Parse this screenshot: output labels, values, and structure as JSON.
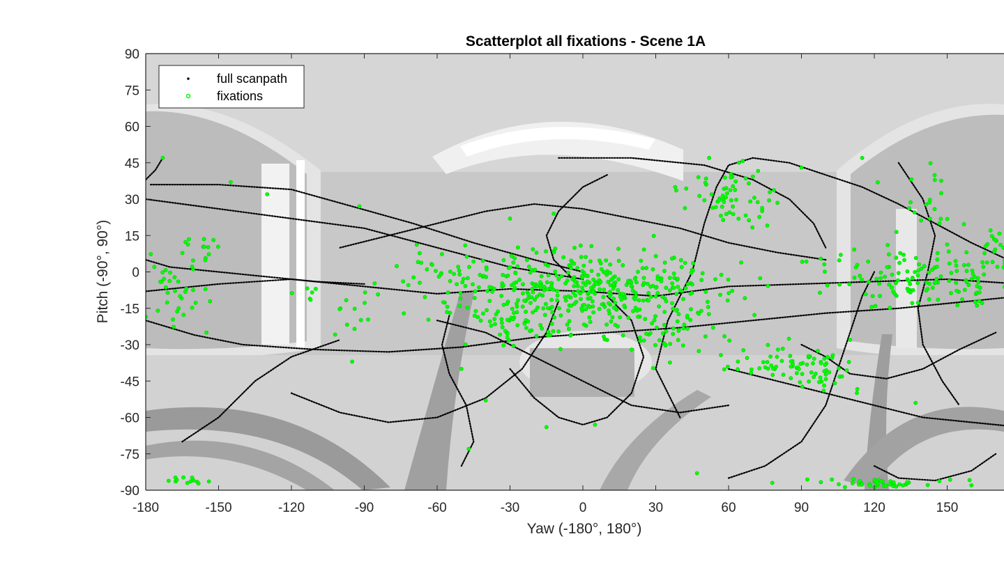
{
  "chart_data": {
    "type": "scatter",
    "title": "Scatterplot all fixations - Scene 1A",
    "xlabel": "Yaw (-180°, 180°)",
    "ylabel": "Pitch (-90°, 90°)",
    "xlim": [
      -180,
      180
    ],
    "ylim": [
      -90,
      90
    ],
    "xticks": [
      -180,
      -150,
      -120,
      -90,
      -60,
      -30,
      0,
      30,
      60,
      90,
      120,
      150
    ],
    "yticks": [
      90,
      75,
      60,
      45,
      30,
      15,
      0,
      -15,
      -30,
      -45,
      -60,
      -75,
      -90
    ],
    "background": "grayscale equirectangular 360° panorama of an interior scene",
    "grid": false,
    "legend_position": "top-left",
    "legend": [
      "full scanpath",
      "fixations"
    ],
    "series": [
      {
        "name": "full scanpath",
        "color": "#000000",
        "marker": "small dots",
        "paths": [
          [
            [
              -180,
              -8
            ],
            [
              -150,
              -5
            ],
            [
              -120,
              -3
            ],
            [
              -90,
              -6
            ],
            [
              -60,
              -9
            ],
            [
              -30,
              -7
            ],
            [
              0,
              -8
            ],
            [
              30,
              -10
            ],
            [
              60,
              -6
            ],
            [
              90,
              -5
            ],
            [
              120,
              -4
            ],
            [
              150,
              -3
            ],
            [
              180,
              -5
            ]
          ],
          [
            [
              -180,
              30
            ],
            [
              -150,
              26
            ],
            [
              -120,
              22
            ],
            [
              -90,
              18
            ],
            [
              -60,
              10
            ],
            [
              -30,
              2
            ],
            [
              0,
              -3
            ]
          ],
          [
            [
              -173,
              47
            ],
            [
              -176,
              42
            ],
            [
              -180,
              38
            ]
          ],
          [
            [
              -178,
              36
            ],
            [
              -150,
              36
            ],
            [
              -120,
              34
            ],
            [
              -95,
              27
            ],
            [
              -70,
              20
            ],
            [
              -45,
              12
            ],
            [
              -20,
              5
            ],
            [
              0,
              0
            ]
          ],
          [
            [
              -180,
              -20
            ],
            [
              -160,
              -26
            ],
            [
              -140,
              -30
            ],
            [
              -110,
              -32
            ],
            [
              -80,
              -33
            ],
            [
              -50,
              -31
            ],
            [
              -20,
              -27
            ],
            [
              10,
              -25
            ],
            [
              40,
              -23
            ],
            [
              70,
              -20
            ],
            [
              100,
              -17
            ],
            [
              130,
              -15
            ],
            [
              160,
              -12
            ],
            [
              180,
              -10
            ]
          ],
          [
            [
              -30,
              -40
            ],
            [
              -20,
              -52
            ],
            [
              -10,
              -60
            ],
            [
              0,
              -63
            ],
            [
              10,
              -60
            ],
            [
              20,
              -50
            ],
            [
              25,
              -35
            ],
            [
              20,
              -20
            ],
            [
              10,
              -10
            ]
          ],
          [
            [
              40,
              -60
            ],
            [
              30,
              -40
            ],
            [
              35,
              -20
            ],
            [
              45,
              0
            ],
            [
              50,
              20
            ],
            [
              55,
              35
            ],
            [
              60,
              44
            ],
            [
              70,
              47
            ],
            [
              85,
              45
            ],
            [
              100,
              40
            ],
            [
              115,
              35
            ],
            [
              130,
              28
            ],
            [
              145,
              20
            ],
            [
              160,
              12
            ],
            [
              175,
              5
            ],
            [
              180,
              2
            ]
          ],
          [
            [
              -120,
              -50
            ],
            [
              -100,
              -58
            ],
            [
              -80,
              -62
            ],
            [
              -60,
              -60
            ],
            [
              -40,
              -52
            ],
            [
              -25,
              -40
            ],
            [
              -15,
              -25
            ],
            [
              -10,
              -12
            ]
          ],
          [
            [
              60,
              -85
            ],
            [
              75,
              -80
            ],
            [
              90,
              -70
            ],
            [
              100,
              -55
            ],
            [
              105,
              -40
            ],
            [
              110,
              -25
            ],
            [
              115,
              -10
            ],
            [
              120,
              0
            ]
          ],
          [
            [
              -50,
              -80
            ],
            [
              -45,
              -70
            ],
            [
              -48,
              -55
            ],
            [
              -55,
              -42
            ],
            [
              -58,
              -30
            ],
            [
              -55,
              -18
            ]
          ],
          [
            [
              10,
              40
            ],
            [
              0,
              35
            ],
            [
              -10,
              25
            ],
            [
              -15,
              15
            ],
            [
              -12,
              5
            ],
            [
              -5,
              -2
            ]
          ],
          [
            [
              120,
              -80
            ],
            [
              130,
              -85
            ],
            [
              145,
              -86
            ],
            [
              160,
              -82
            ],
            [
              170,
              -75
            ]
          ],
          [
            [
              -100,
              10
            ],
            [
              -80,
              15
            ],
            [
              -60,
              20
            ],
            [
              -40,
              25
            ],
            [
              -20,
              28
            ],
            [
              0,
              26
            ],
            [
              20,
              22
            ],
            [
              40,
              18
            ],
            [
              60,
              12
            ],
            [
              80,
              8
            ],
            [
              100,
              5
            ]
          ],
          [
            [
              -165,
              -70
            ],
            [
              -150,
              -60
            ],
            [
              -135,
              -45
            ],
            [
              -120,
              -35
            ],
            [
              -100,
              -28
            ]
          ],
          [
            [
              -10,
              47
            ],
            [
              20,
              47
            ],
            [
              50,
              44
            ],
            [
              70,
              38
            ],
            [
              85,
              30
            ],
            [
              95,
              20
            ],
            [
              100,
              10
            ]
          ],
          [
            [
              130,
              45
            ],
            [
              140,
              30
            ],
            [
              145,
              15
            ],
            [
              142,
              0
            ],
            [
              138,
              -15
            ],
            [
              140,
              -30
            ],
            [
              148,
              -45
            ],
            [
              155,
              -55
            ]
          ],
          [
            [
              -180,
              5
            ],
            [
              -170,
              2
            ],
            [
              -150,
              0
            ],
            [
              -130,
              -2
            ],
            [
              -110,
              -4
            ],
            [
              -90,
              -5
            ]
          ],
          [
            [
              60,
              -40
            ],
            [
              80,
              -45
            ],
            [
              100,
              -50
            ],
            [
              120,
              -55
            ],
            [
              140,
              -60
            ],
            [
              160,
              -62
            ],
            [
              180,
              -64
            ]
          ],
          [
            [
              -60,
              -20
            ],
            [
              -40,
              -25
            ],
            [
              -20,
              -35
            ],
            [
              0,
              -45
            ],
            [
              20,
              -55
            ],
            [
              40,
              -58
            ],
            [
              60,
              -55
            ]
          ],
          [
            [
              90,
              -30
            ],
            [
              100,
              -35
            ],
            [
              110,
              -42
            ],
            [
              125,
              -44
            ],
            [
              140,
              -40
            ],
            [
              155,
              -32
            ],
            [
              170,
              -25
            ]
          ]
        ]
      },
      {
        "name": "fixations",
        "color": "#00ff00",
        "marker": "circle",
        "clusters": [
          {
            "center": [
              0,
              -8
            ],
            "spread": [
              26,
              8
            ],
            "count": 440
          },
          {
            "center": [
              -170,
              -5
            ],
            "spread": [
              8,
              8
            ],
            "count": 34
          },
          {
            "center": [
              -158,
              10
            ],
            "spread": [
              4,
              5
            ],
            "count": 14
          },
          {
            "center": [
              150,
              -3
            ],
            "spread": [
              18,
              6
            ],
            "count": 100
          },
          {
            "center": [
              175,
              10
            ],
            "spread": [
              5,
              5
            ],
            "count": 24
          },
          {
            "center": [
              120,
              -3
            ],
            "spread": [
              12,
              6
            ],
            "count": 40
          },
          {
            "center": [
              85,
              -38
            ],
            "spread": [
              12,
              4
            ],
            "count": 60
          },
          {
            "center": [
              60,
              32
            ],
            "spread": [
              10,
              7
            ],
            "count": 60
          },
          {
            "center": [
              40,
              -25
            ],
            "spread": [
              12,
              6
            ],
            "count": 45
          },
          {
            "center": [
              -100,
              -12
            ],
            "spread": [
              12,
              5
            ],
            "count": 20
          },
          {
            "center": [
              125,
              -87
            ],
            "spread": [
              15,
              1
            ],
            "count": 40
          },
          {
            "center": [
              -162,
              -86
            ],
            "spread": [
              6,
              1
            ],
            "count": 12
          },
          {
            "center": [
              -30,
              -22
            ],
            "spread": [
              8,
              5
            ],
            "count": 30
          },
          {
            "center": [
              100,
              -45
            ],
            "spread": [
              6,
              3
            ],
            "count": 20
          },
          {
            "center": [
              140,
              25
            ],
            "spread": [
              8,
              10
            ],
            "count": 24
          },
          {
            "center": [
              -60,
              2
            ],
            "spread": [
              8,
              4
            ],
            "count": 20
          }
        ],
        "points": [
          [
            -173,
            47
          ],
          [
            -145,
            37
          ],
          [
            -130,
            32
          ],
          [
            -92,
            27
          ],
          [
            -30,
            22
          ],
          [
            -12,
            24
          ],
          [
            38,
            35
          ],
          [
            52,
            47
          ],
          [
            90,
            43
          ],
          [
            115,
            47
          ],
          [
            -47,
            -73
          ],
          [
            -95,
            -37
          ],
          [
            -155,
            -25
          ],
          [
            -175,
            -16
          ],
          [
            47,
            -83
          ],
          [
            78,
            -87
          ],
          [
            -40,
            -53
          ],
          [
            5,
            -63
          ],
          [
            -15,
            -64
          ],
          [
            160,
            -88
          ],
          [
            175,
            -86
          ],
          [
            137,
            -54
          ],
          [
            110,
            -28
          ],
          [
            -50,
            -40
          ]
        ]
      }
    ]
  }
}
